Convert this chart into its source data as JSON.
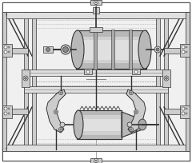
{
  "bg": "#ffffff",
  "c0": "#333333",
  "c1": "#aaaaaa",
  "c2": "#cccccc",
  "c3": "#e0e0e0",
  "c4": "#d0d0d0",
  "c5": "#b8b8b8",
  "c6": "#f0f0f0",
  "c7": "#888888",
  "c8": "#bbbbbb"
}
